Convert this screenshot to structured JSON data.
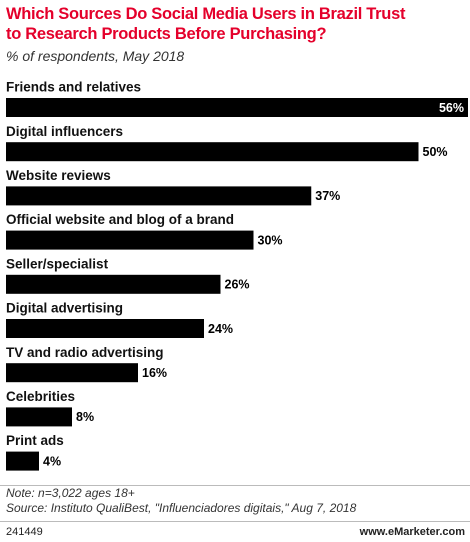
{
  "chart_data": {
    "type": "bar",
    "orientation": "horizontal",
    "title": "Which Sources Do Social Media Users in Brazil Trust\nto Research Products Before Purchasing?",
    "subtitle": "% of respondents, May 2018",
    "categories": [
      "Friends and relatives",
      "Digital influencers",
      "Website reviews",
      "Official website and blog of a brand",
      "Seller/specialist",
      "Digital advertising",
      "TV and radio advertising",
      "Celebrities",
      "Print ads"
    ],
    "values": [
      56,
      50,
      37,
      30,
      26,
      24,
      16,
      8,
      4
    ],
    "value_labels": [
      "56%",
      "50%",
      "37%",
      "30%",
      "26%",
      "24%",
      "16%",
      "8%",
      "4%"
    ],
    "color": "#000000",
    "note": "Note: n=3,022 ages 18+",
    "source": "Source: Instituto QualiBest, \"Influenciadores digitais,\" Aug 7, 2018",
    "chart_id": "241449",
    "website": "www.eMarketer.com"
  }
}
